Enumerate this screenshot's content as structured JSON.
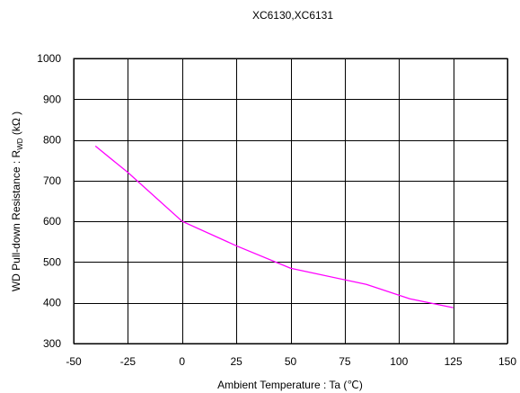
{
  "chart_data": {
    "type": "line",
    "title": "XC6130,XC6131",
    "xlabel": "Ambient Temperature : Ta (℃)",
    "ylabel": {
      "main": "WD Pull-down Resistance : R",
      "sub": "WD",
      "unit": " (kΩ )"
    },
    "xlim": [
      -50,
      150
    ],
    "ylim": [
      300,
      1000
    ],
    "xticks": [
      -50,
      -25,
      0,
      25,
      50,
      75,
      100,
      125,
      150
    ],
    "yticks": [
      300,
      400,
      500,
      600,
      700,
      800,
      900,
      1000
    ],
    "grid": true,
    "series": [
      {
        "color": "#ff00ff",
        "x": [
          -40,
          -25,
          0,
          25,
          50,
          85,
          105,
          125
        ],
        "y": [
          785,
          720,
          600,
          540,
          485,
          445,
          410,
          388
        ]
      }
    ]
  }
}
